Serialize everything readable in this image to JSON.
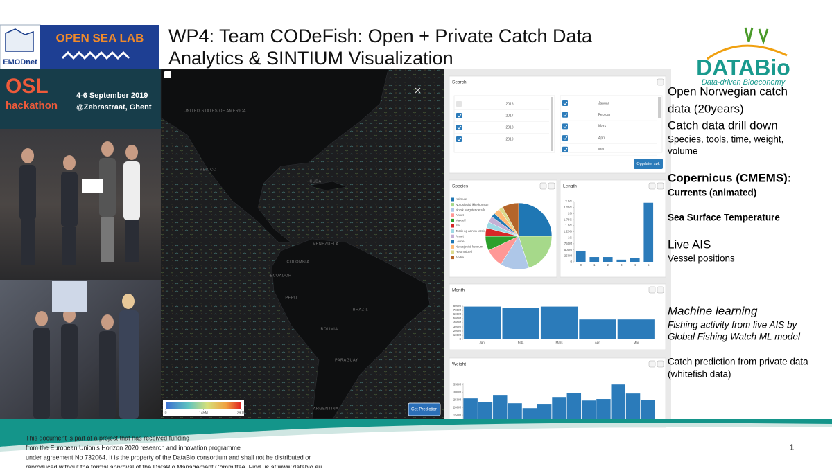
{
  "header": {
    "title_lines": [
      "WP4: Team CODeFish: Open + Private Catch Data",
      "Analytics & SINTIUM Visualization"
    ]
  },
  "logos": {
    "emodnet": "EMODnet",
    "open_sea_lab": "OPEN SEA LAB",
    "databio": "DATABio",
    "databio_tagline": "Data-driven Bioeconomy"
  },
  "poster": {
    "osl": "OSL",
    "hackathon": "hackathon",
    "dates": "4-6 September 2019",
    "venue": "@Zebrastraat, Ghent"
  },
  "map": {
    "labels": [
      "UNITED STATES OF AMERICA",
      "MEXICO",
      "CUBA",
      "VENEZUELA",
      "COLOMBIA",
      "ECUADOR",
      "PERU",
      "BRAZIL",
      "BOLIVIA",
      "PARAGUAY",
      "ARGENTINA"
    ],
    "colorbar": {
      "lim": [
        0,
        290000000
      ],
      "ticks": [
        {
          "value": 0,
          "label": "0"
        },
        {
          "value": 145000000,
          "label": "145M"
        },
        {
          "value": 290000000,
          "label": "290M"
        }
      ]
    },
    "button": "Get Prediction"
  },
  "dashboard": {
    "search": {
      "title": "Search",
      "years": [
        {
          "label": "2016",
          "checked": false
        },
        {
          "label": "2017",
          "checked": true
        },
        {
          "label": "2018",
          "checked": true
        },
        {
          "label": "2019",
          "checked": true
        }
      ],
      "months": [
        {
          "label": "Januar",
          "checked": true
        },
        {
          "label": "Februar",
          "checked": true
        },
        {
          "label": "Mars",
          "checked": true
        },
        {
          "label": "April",
          "checked": true
        },
        {
          "label": "Mai",
          "checked": true
        }
      ],
      "button": "Oppdater søk"
    },
    "species": {
      "type": "pie",
      "title": "Species",
      "categories": [
        "Kolmule",
        "Nordsjøsild ikke konsum",
        "Norsk vårgytende sild",
        "Annet",
        "Makrell",
        "Sei",
        "Torsk og annen torsk",
        "Annet",
        "Lodde",
        "Nordsjøsild konsum",
        "Hestmakrell",
        "Andre"
      ],
      "values": [
        25,
        20,
        14,
        9,
        7,
        4,
        3,
        3,
        2,
        3,
        2,
        8
      ],
      "colors": [
        "#1f77b4",
        "#a6d98a",
        "#aec7e8",
        "#ff9896",
        "#2ca02c",
        "#d62728",
        "#9edae5",
        "#c5b0d5",
        "#1f77b4",
        "#ffbb78",
        "#dbdb8d",
        "#b5652a"
      ]
    },
    "length": {
      "type": "bar",
      "title": "Length",
      "categories": [
        "0",
        "1",
        "2",
        "3",
        "4",
        "5"
      ],
      "values": [
        460000000,
        200000000,
        200000000,
        90000000,
        170000000,
        2450000000
      ],
      "color": "#2b7bba",
      "ylim": [
        0,
        2500000000
      ],
      "yticks": [
        {
          "value": 0,
          "label": "0"
        },
        {
          "value": 250000000,
          "label": "250M"
        },
        {
          "value": 500000000,
          "label": "500M"
        },
        {
          "value": 750000000,
          "label": "750M"
        },
        {
          "value": 1000000000,
          "label": "1G"
        },
        {
          "value": 1250000000,
          "label": "1.25G"
        },
        {
          "value": 1500000000,
          "label": "1.5G"
        },
        {
          "value": 1750000000,
          "label": "1.75G"
        },
        {
          "value": 2000000000,
          "label": "2G"
        },
        {
          "value": 2250000000,
          "label": "2.25G"
        },
        {
          "value": 2500000000,
          "label": "2.5G"
        }
      ]
    },
    "month": {
      "type": "bar",
      "title": "Month",
      "categories": [
        "Jan.",
        "Feb.",
        "Mars",
        "Apr.",
        "Mai"
      ],
      "values": [
        790000000,
        760000000,
        790000000,
        480000000,
        480000000
      ],
      "color": "#2b7bba",
      "ylim": [
        0,
        800000000
      ],
      "yticks": [
        {
          "value": 0,
          "label": "0"
        },
        {
          "value": 100000000,
          "label": "100M"
        },
        {
          "value": 200000000,
          "label": "200M"
        },
        {
          "value": 300000000,
          "label": "300M"
        },
        {
          "value": 400000000,
          "label": "400M"
        },
        {
          "value": 500000000,
          "label": "500M"
        },
        {
          "value": 600000000,
          "label": "600M"
        },
        {
          "value": 700000000,
          "label": "700M"
        },
        {
          "value": 800000000,
          "label": "800M"
        }
      ]
    },
    "weight": {
      "type": "bar",
      "title": "Weight",
      "values": [
        259000000,
        236000000,
        282000000,
        227000000,
        195000000,
        223000000,
        268000000,
        295000000,
        245000000,
        255000000,
        350000000,
        291000000,
        250000000
      ],
      "color": "#2b7bba",
      "ylim": [
        0,
        360000000
      ],
      "yticks": [
        {
          "value": 150000000,
          "label": "150M"
        },
        {
          "value": 200000000,
          "label": "200M"
        },
        {
          "value": 250000000,
          "label": "250M"
        },
        {
          "value": 300000000,
          "label": "300M"
        },
        {
          "value": 350000000,
          "label": "350M"
        }
      ]
    }
  },
  "notes": [
    {
      "style": "large",
      "lines": [
        "Open Norwegian catch",
        "data (20years)"
      ]
    },
    {
      "style": "large",
      "lines": [
        "Catch data drill down"
      ]
    },
    {
      "style": "small",
      "lines": [
        "Species, tools, time, weight,",
        "volume"
      ]
    },
    {
      "style": "large-bold",
      "lines": [
        "Copernicus (CMEMS):"
      ]
    },
    {
      "style": "small-bold",
      "lines": [
        "Currents (animated)"
      ]
    },
    {
      "style": "small-bold",
      "lines": [
        "Sea Surface Temperature"
      ]
    },
    {
      "style": "large",
      "lines": [
        "Live AIS"
      ]
    },
    {
      "style": "small",
      "lines": [
        "Vessel positions"
      ]
    },
    {
      "style": "large-italic",
      "lines": [
        "Machine learning"
      ]
    },
    {
      "style": "small-italic",
      "lines": [
        "Fishing activity from live AIS by",
        "Global Fishing Watch ML model"
      ]
    },
    {
      "style": "small",
      "lines": [
        "Catch prediction from private data",
        "(whitefish data)"
      ]
    }
  ],
  "footer": {
    "lines": [
      "This document is part of a project that has received funding",
      "from the European Union's Horizon 2020 research and innovation programme",
      "under agreement No 732064. It is the property of the DataBio consortium and shall not be distributed or",
      "reproduced without the formal approval of the DataBio Management Committee. Find us at www.databio.eu."
    ]
  },
  "page_number": "1"
}
